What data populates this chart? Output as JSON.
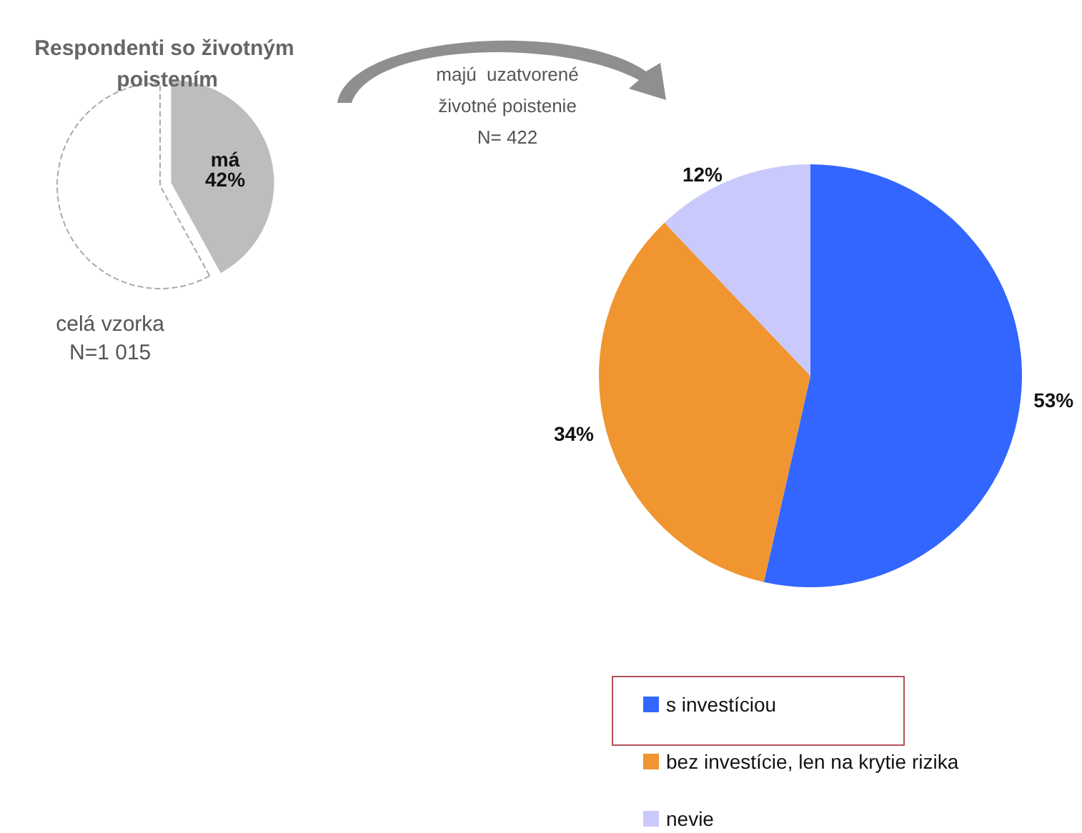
{
  "chart_data": [
    {
      "type": "pie",
      "title": "Respondenti so životným poistením",
      "categories": [
        "má",
        null
      ],
      "values": [
        42,
        58
      ],
      "colors": [
        "#bdbdbd",
        "#ffffff"
      ],
      "value_labels": [
        "42%",
        null
      ],
      "annotations": [
        "celá vzorka\nN=1 015"
      ],
      "legend": false
    },
    {
      "type": "pie",
      "categories": [
        "s investíciou",
        "bez investície, len na krytie rizika",
        "nevie"
      ],
      "values": [
        53,
        34,
        12
      ],
      "colors": [
        "#3366ff",
        "#f09530",
        "#c9c9fb"
      ],
      "value_labels": [
        "53%",
        "34%",
        "12%"
      ],
      "annotations": [
        "majú  uzatvorené\nživotné poistenie\nN= 422"
      ],
      "legend": "bottom"
    }
  ]
}
